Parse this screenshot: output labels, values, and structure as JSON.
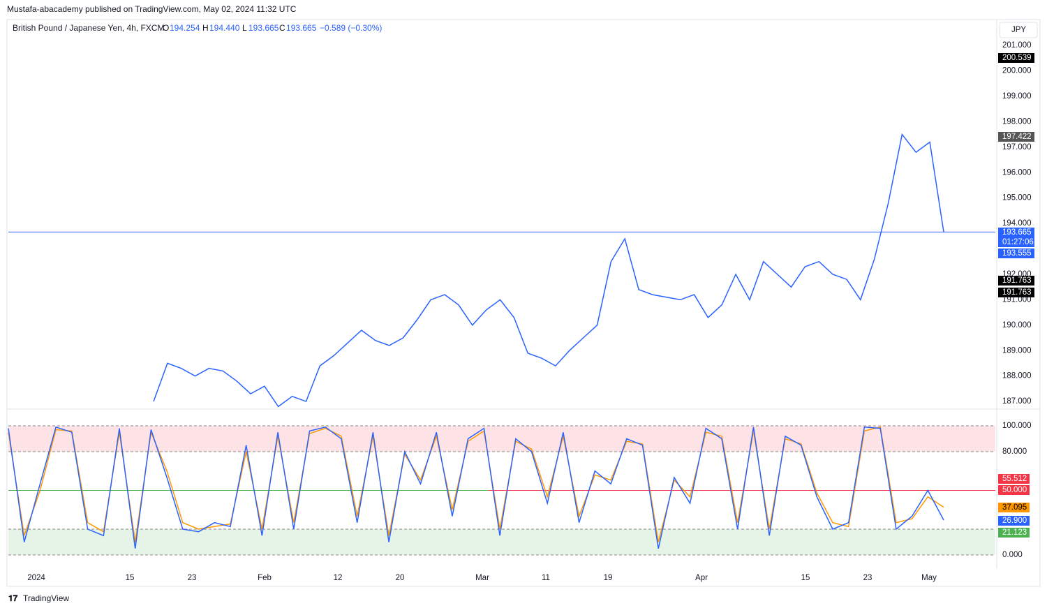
{
  "header": {
    "publisher": "Mustafa-abacademy published on TradingView.com, May 02, 2024 11:32 UTC"
  },
  "legend": {
    "symbol": "British Pound / Japanese Yen, 4h, FXCM",
    "o_label": "O",
    "open": "194.254",
    "h_label": "H",
    "high": "194.440",
    "l_label": "L",
    "low": "193.665",
    "c_label": "C",
    "close": "193.665",
    "change": "−0.589 (−0.30%)"
  },
  "currency": "JPY",
  "price_pane": {
    "ylim": [
      186.7,
      202.02
    ],
    "yticks": [
      {
        "value": 187,
        "label": "187.000"
      },
      {
        "value": 188,
        "label": "188.000"
      },
      {
        "value": 189,
        "label": "189.000"
      },
      {
        "value": 190,
        "label": "190.000"
      },
      {
        "value": 191,
        "label": "191.000"
      },
      {
        "value": 192,
        "label": "192.000"
      },
      {
        "value": 194,
        "label": "194.000"
      },
      {
        "value": 195,
        "label": "195.000"
      },
      {
        "value": 196,
        "label": "196.000"
      },
      {
        "value": 197,
        "label": "197.000"
      },
      {
        "value": 198,
        "label": "198.000"
      },
      {
        "value": 199,
        "label": "199.000"
      },
      {
        "value": 200,
        "label": "200.000"
      },
      {
        "value": 201,
        "label": "201.000"
      }
    ],
    "last_price": 193.665,
    "values": [
      187.0,
      188.5,
      188.3,
      188.0,
      188.3,
      188.2,
      187.8,
      187.3,
      187.6,
      186.8,
      187.2,
      187.0,
      188.4,
      188.8,
      189.3,
      189.8,
      189.4,
      189.2,
      189.5,
      190.2,
      191.0,
      191.2,
      190.8,
      190.0,
      190.6,
      191.0,
      190.3,
      188.9,
      188.7,
      188.4,
      189.0,
      189.5,
      190.0,
      192.5,
      193.4,
      191.4,
      191.2,
      191.1,
      191.0,
      191.2,
      190.3,
      190.8,
      192.0,
      191.0,
      192.5,
      192.0,
      191.5,
      192.3,
      192.5,
      192.0,
      191.8,
      191.0,
      192.6,
      194.8,
      197.5,
      196.8,
      197.2,
      193.665
    ],
    "color": "#2962ff",
    "badges": [
      "200.539",
      "197.422",
      "193.665",
      "01:27:06",
      "193.555",
      "191.763",
      "191.763"
    ]
  },
  "osc_pane": {
    "ylim": [
      -10.8,
      112.4
    ],
    "yticks": [
      {
        "value": 0,
        "label": "0.000"
      },
      {
        "value": 80,
        "label": "80.000"
      },
      {
        "value": 100,
        "label": "100.000"
      }
    ],
    "lower_band": 20,
    "mid": 50,
    "k_values": [
      98,
      10,
      55,
      99,
      95,
      20,
      15,
      98,
      5,
      97,
      60,
      20,
      18,
      25,
      22,
      85,
      15,
      95,
      20,
      96,
      99,
      90,
      25,
      95,
      10,
      80,
      55,
      95,
      30,
      90,
      98,
      15,
      90,
      80,
      40,
      95,
      25,
      65,
      55,
      90,
      85,
      5,
      60,
      40,
      98,
      90,
      20,
      99,
      15,
      92,
      85,
      45,
      20,
      25,
      99,
      98,
      20,
      30,
      50,
      27
    ],
    "d_values": [
      95,
      15,
      50,
      97,
      96,
      25,
      18,
      95,
      10,
      95,
      65,
      25,
      20,
      22,
      24,
      80,
      20,
      92,
      25,
      94,
      98,
      92,
      30,
      92,
      15,
      78,
      58,
      92,
      35,
      88,
      96,
      20,
      88,
      82,
      45,
      92,
      30,
      62,
      58,
      88,
      86,
      10,
      58,
      45,
      95,
      92,
      25,
      96,
      20,
      90,
      86,
      48,
      25,
      22,
      96,
      99,
      25,
      28,
      45,
      37
    ],
    "k_color": "#2962ff",
    "d_color": "#ff9800",
    "badges": [
      "55.512",
      "50.000",
      "37.095",
      "26.900",
      "21.123"
    ]
  },
  "time_axis": [
    "2024",
    "15",
    "23",
    "Feb",
    "12",
    "20",
    "Mar",
    "11",
    "19",
    "Apr",
    "15",
    "23",
    "May"
  ],
  "footer": "TradingView"
}
